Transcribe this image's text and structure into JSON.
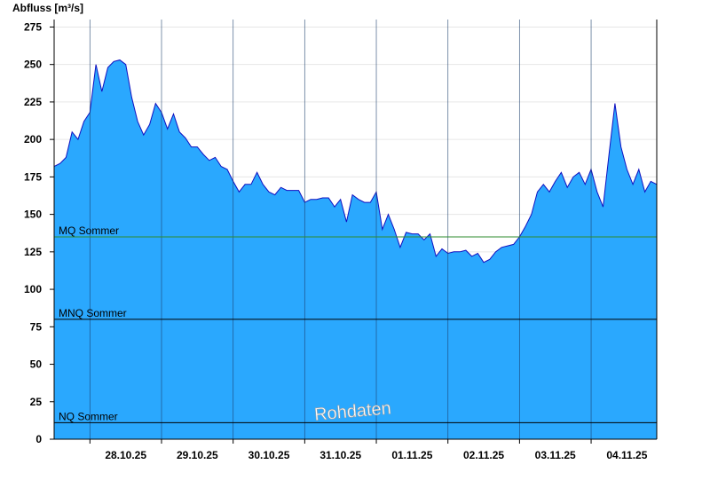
{
  "chart_data": {
    "type": "area",
    "ylabel": "Abfluss [m³/s]",
    "ylim": [
      0,
      280
    ],
    "yticks": [
      0,
      25,
      50,
      75,
      100,
      125,
      150,
      175,
      200,
      225,
      250,
      275
    ],
    "x_range": [
      "2025-10-27T12:00",
      "2025-11-04T22:00"
    ],
    "x_tick_labels": [
      "28.10.25",
      "29.10.25",
      "30.10.25",
      "31.10.25",
      "01.11.25",
      "02.11.25",
      "03.11.25",
      "04.11.25"
    ],
    "x_tick_times": [
      "2025-10-28T12:00",
      "2025-10-29T12:00",
      "2025-10-30T12:00",
      "2025-10-31T12:00",
      "2025-11-01T12:00",
      "2025-11-02T12:00",
      "2025-11-03T12:00",
      "2025-11-04T12:00"
    ],
    "day_lines": [
      "2025-10-28T00:00",
      "2025-10-29T00:00",
      "2025-10-30T00:00",
      "2025-10-31T00:00",
      "2025-11-01T00:00",
      "2025-11-02T00:00",
      "2025-11-03T00:00",
      "2025-11-04T00:00",
      "2025-11-05T00:00"
    ],
    "reference_lines": [
      {
        "name": "MQ Sommer",
        "value": 135,
        "color": "#2e8b2e"
      },
      {
        "name": "MNQ Sommer",
        "value": 80,
        "color": "#000000"
      },
      {
        "name": "NQ Sommer",
        "value": 11,
        "color": "#000000"
      }
    ],
    "series": [
      {
        "fill_color": "#2aa8fe",
        "line_color": "#1010c0",
        "points": [
          [
            "2025-10-27T12:00",
            182
          ],
          [
            "2025-10-27T14:00",
            184
          ],
          [
            "2025-10-27T16:00",
            188
          ],
          [
            "2025-10-27T18:00",
            205
          ],
          [
            "2025-10-27T20:00",
            200
          ],
          [
            "2025-10-27T22:00",
            212
          ],
          [
            "2025-10-28T00:00",
            218
          ],
          [
            "2025-10-28T02:00",
            250
          ],
          [
            "2025-10-28T04:00",
            232
          ],
          [
            "2025-10-28T06:00",
            248
          ],
          [
            "2025-10-28T08:00",
            252
          ],
          [
            "2025-10-28T10:00",
            253
          ],
          [
            "2025-10-28T12:00",
            250
          ],
          [
            "2025-10-28T14:00",
            228
          ],
          [
            "2025-10-28T16:00",
            212
          ],
          [
            "2025-10-28T18:00",
            203
          ],
          [
            "2025-10-28T20:00",
            210
          ],
          [
            "2025-10-28T22:00",
            224
          ],
          [
            "2025-10-29T00:00",
            218
          ],
          [
            "2025-10-29T02:00",
            207
          ],
          [
            "2025-10-29T04:00",
            217
          ],
          [
            "2025-10-29T06:00",
            205
          ],
          [
            "2025-10-29T08:00",
            201
          ],
          [
            "2025-10-29T10:00",
            195
          ],
          [
            "2025-10-29T12:00",
            195
          ],
          [
            "2025-10-29T14:00",
            190
          ],
          [
            "2025-10-29T16:00",
            186
          ],
          [
            "2025-10-29T18:00",
            188
          ],
          [
            "2025-10-29T20:00",
            182
          ],
          [
            "2025-10-29T22:00",
            180
          ],
          [
            "2025-10-30T00:00",
            172
          ],
          [
            "2025-10-30T02:00",
            165
          ],
          [
            "2025-10-30T04:00",
            170
          ],
          [
            "2025-10-30T06:00",
            170
          ],
          [
            "2025-10-30T08:00",
            178
          ],
          [
            "2025-10-30T10:00",
            170
          ],
          [
            "2025-10-30T12:00",
            165
          ],
          [
            "2025-10-30T14:00",
            163
          ],
          [
            "2025-10-30T16:00",
            168
          ],
          [
            "2025-10-30T18:00",
            166
          ],
          [
            "2025-10-30T20:00",
            166
          ],
          [
            "2025-10-30T22:00",
            166
          ],
          [
            "2025-10-31T00:00",
            158
          ],
          [
            "2025-10-31T02:00",
            160
          ],
          [
            "2025-10-31T04:00",
            160
          ],
          [
            "2025-10-31T06:00",
            161
          ],
          [
            "2025-10-31T08:00",
            161
          ],
          [
            "2025-10-31T10:00",
            155
          ],
          [
            "2025-10-31T12:00",
            160
          ],
          [
            "2025-10-31T14:00",
            145
          ],
          [
            "2025-10-31T16:00",
            163
          ],
          [
            "2025-10-31T18:00",
            160
          ],
          [
            "2025-10-31T20:00",
            158
          ],
          [
            "2025-10-31T22:00",
            158
          ],
          [
            "2025-11-01T00:00",
            165
          ],
          [
            "2025-11-01T02:00",
            140
          ],
          [
            "2025-11-01T04:00",
            150
          ],
          [
            "2025-11-01T06:00",
            140
          ],
          [
            "2025-11-01T08:00",
            128
          ],
          [
            "2025-11-01T10:00",
            138
          ],
          [
            "2025-11-01T12:00",
            137
          ],
          [
            "2025-11-01T14:00",
            137
          ],
          [
            "2025-11-01T16:00",
            133
          ],
          [
            "2025-11-01T18:00",
            137
          ],
          [
            "2025-11-01T20:00",
            122
          ],
          [
            "2025-11-01T22:00",
            127
          ],
          [
            "2025-11-02T00:00",
            124
          ],
          [
            "2025-11-02T02:00",
            125
          ],
          [
            "2025-11-02T04:00",
            125
          ],
          [
            "2025-11-02T06:00",
            126
          ],
          [
            "2025-11-02T08:00",
            122
          ],
          [
            "2025-11-02T10:00",
            124
          ],
          [
            "2025-11-02T12:00",
            118
          ],
          [
            "2025-11-02T14:00",
            120
          ],
          [
            "2025-11-02T16:00",
            125
          ],
          [
            "2025-11-02T18:00",
            128
          ],
          [
            "2025-11-02T20:00",
            129
          ],
          [
            "2025-11-02T22:00",
            130
          ],
          [
            "2025-11-03T00:00",
            135
          ],
          [
            "2025-11-03T02:00",
            142
          ],
          [
            "2025-11-03T04:00",
            150
          ],
          [
            "2025-11-03T06:00",
            165
          ],
          [
            "2025-11-03T08:00",
            170
          ],
          [
            "2025-11-03T10:00",
            165
          ],
          [
            "2025-11-03T12:00",
            172
          ],
          [
            "2025-11-03T14:00",
            178
          ],
          [
            "2025-11-03T16:00",
            168
          ],
          [
            "2025-11-03T18:00",
            175
          ],
          [
            "2025-11-03T20:00",
            178
          ],
          [
            "2025-11-03T22:00",
            170
          ],
          [
            "2025-11-04T00:00",
            180
          ],
          [
            "2025-11-04T02:00",
            165
          ],
          [
            "2025-11-04T04:00",
            155
          ],
          [
            "2025-11-04T06:00",
            190
          ],
          [
            "2025-11-04T08:00",
            224
          ],
          [
            "2025-11-04T10:00",
            195
          ],
          [
            "2025-11-04T12:00",
            180
          ],
          [
            "2025-11-04T14:00",
            170
          ],
          [
            "2025-11-04T16:00",
            180
          ],
          [
            "2025-11-04T18:00",
            165
          ],
          [
            "2025-11-04T20:00",
            172
          ],
          [
            "2025-11-04T22:00",
            170
          ]
        ]
      }
    ],
    "grid": true
  },
  "watermark": "Rohdaten"
}
